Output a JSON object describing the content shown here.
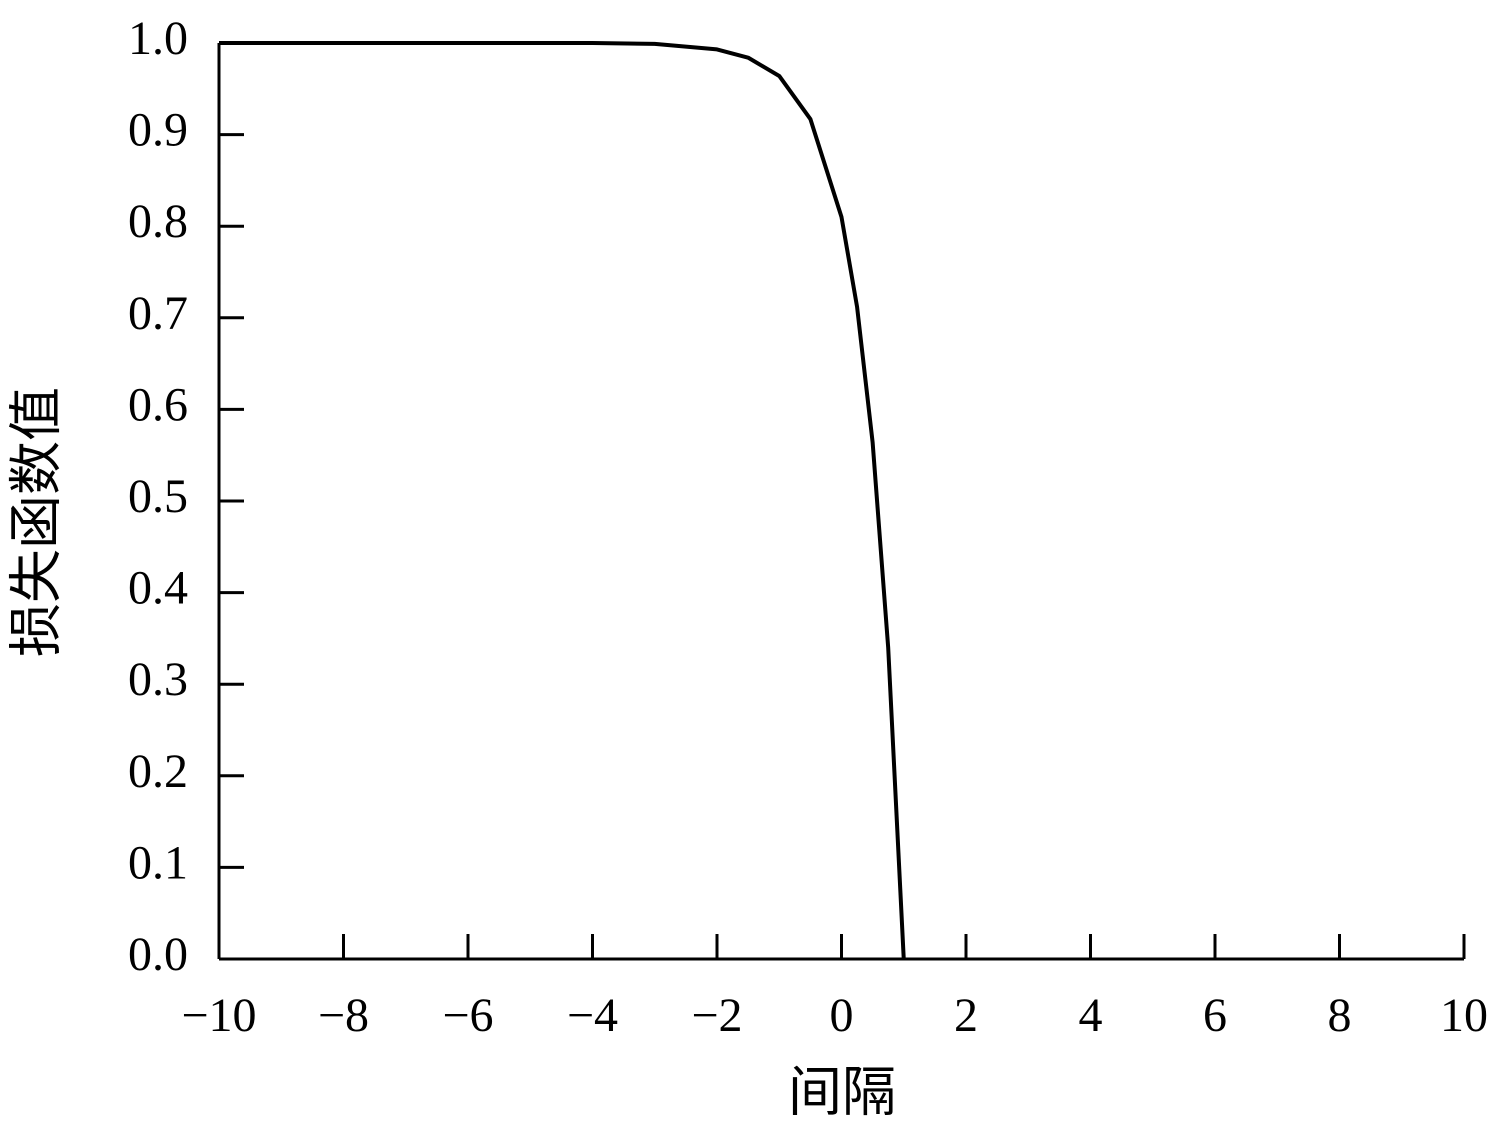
{
  "chart_data": {
    "type": "line",
    "x_label": "间隔",
    "y_label": "损失函数值",
    "x": [
      -10,
      -8,
      -6,
      -4,
      -3,
      -2,
      -1.5,
      -1,
      -0.5,
      0,
      0.25,
      0.5,
      0.75,
      1
    ],
    "series": [
      {
        "color": "#000000",
        "values": [
          1.0,
          1.0,
          1.0,
          1.0,
          0.999,
          0.993,
          0.984,
          0.964,
          0.917,
          0.81,
          0.712,
          0.564,
          0.34,
          0
        ]
      }
    ],
    "xlim": [
      -10,
      10
    ],
    "xticks": [
      {
        "value": -10,
        "label": "−10"
      },
      {
        "value": -8,
        "label": "−8"
      },
      {
        "value": -6,
        "label": "−6"
      },
      {
        "value": -4,
        "label": "−4"
      },
      {
        "value": -2,
        "label": "−2"
      },
      0,
      2,
      4,
      6,
      8,
      10
    ],
    "ylim": [
      0,
      1
    ],
    "yticks": [
      {
        "value": 0,
        "label": "0.0"
      },
      0.1,
      0.2,
      0.3,
      0.4,
      0.5,
      0.6,
      0.7,
      0.8,
      0.9,
      {
        "value": 1,
        "label": "1.0"
      }
    ],
    "grid": false
  }
}
